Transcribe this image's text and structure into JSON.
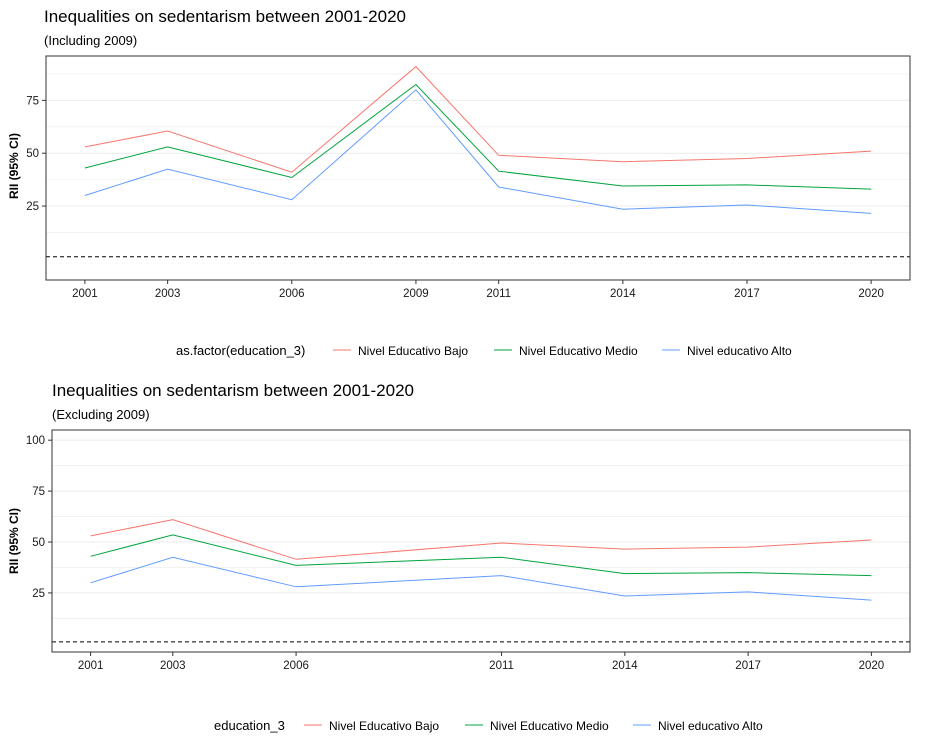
{
  "colors": {
    "bajo": "#F8766D",
    "medio": "#00A43C",
    "alto": "#619CFF",
    "grid": "#EBEBEB",
    "ref": "#000000"
  },
  "chart_data": [
    {
      "type": "line",
      "title": "Inequalities on sedentarism between 2001-2020",
      "subtitle": "(Including 2009)",
      "xlabel": "",
      "ylabel": "RII (95% CI)",
      "x": [
        2001,
        2003,
        2006,
        2009,
        2011,
        2014,
        2017,
        2020
      ],
      "x_ticks": [
        "2001",
        "2003",
        "2006",
        "2009",
        "2011",
        "2014",
        "2017",
        "2020"
      ],
      "ylim": [
        -10,
        96
      ],
      "y_ticks": [
        25,
        50,
        75
      ],
      "y_tick_labels": [
        "25",
        "50",
        "75"
      ],
      "reference_line": 1,
      "grid": true,
      "legend_title": "as.factor(education_3)",
      "legend_position": "bottom",
      "series": [
        {
          "name": "Nivel Educativo Bajo",
          "color_key": "bajo",
          "values": [
            53,
            60.5,
            41,
            91,
            49,
            46,
            47.5,
            51
          ]
        },
        {
          "name": "Nivel Educativo Medio",
          "color_key": "medio",
          "values": [
            43,
            53,
            38.5,
            82.5,
            41.5,
            34.5,
            35,
            33
          ]
        },
        {
          "name": "Nivel educativo Alto",
          "color_key": "alto",
          "values": [
            30,
            42.5,
            28,
            80,
            34,
            23.5,
            25.5,
            21.5
          ]
        }
      ]
    },
    {
      "type": "line",
      "title": "Inequalities on sedentarism between 2001-2020",
      "subtitle": "(Excluding 2009)",
      "xlabel": "",
      "ylabel": "RII (95% CI)",
      "x": [
        2001,
        2003,
        2006,
        2011,
        2014,
        2017,
        2020
      ],
      "x_ticks": [
        "2001",
        "2003",
        "2006",
        "2011",
        "2014",
        "2017",
        "2020"
      ],
      "ylim": [
        -4,
        105
      ],
      "y_ticks": [
        25,
        50,
        75,
        100
      ],
      "y_tick_labels": [
        "25",
        "50",
        "75",
        "100"
      ],
      "reference_line": 1,
      "grid": true,
      "legend_title": "education_3",
      "legend_position": "bottom",
      "series": [
        {
          "name": "Nivel Educativo Bajo",
          "color_key": "bajo",
          "values": [
            53,
            61,
            41.5,
            49.5,
            46.5,
            47.5,
            51
          ]
        },
        {
          "name": "Nivel Educativo Medio",
          "color_key": "medio",
          "values": [
            43,
            53.5,
            38.5,
            42.5,
            34.5,
            35,
            33.5
          ]
        },
        {
          "name": "Nivel educativo Alto",
          "color_key": "alto",
          "values": [
            30,
            42.5,
            28,
            33.5,
            23.5,
            25.5,
            21.5
          ]
        }
      ]
    }
  ]
}
